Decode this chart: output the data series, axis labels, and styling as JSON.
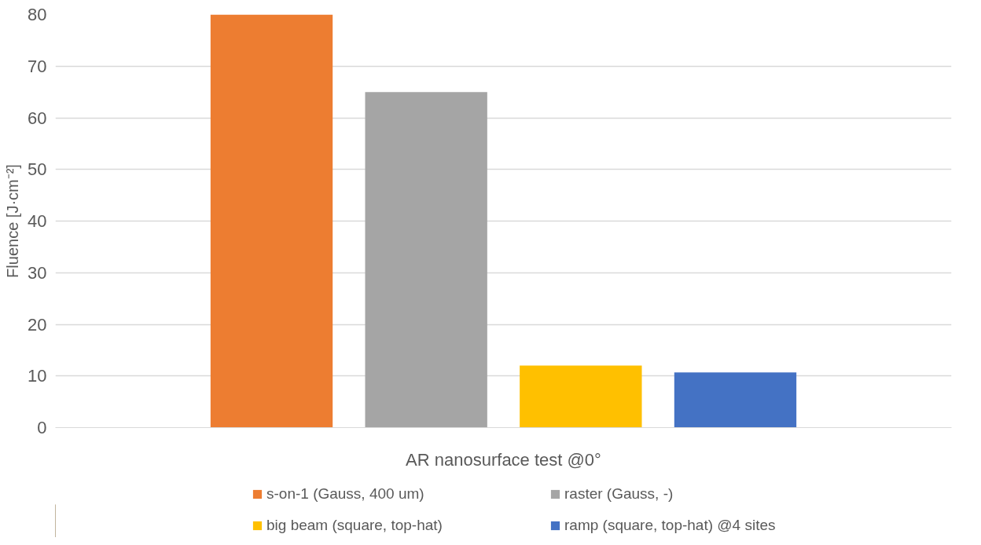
{
  "chart_data": {
    "type": "bar",
    "categories": [
      "AR nanosurface test @0°"
    ],
    "ylabel": "Fluence [J·cm⁻²]",
    "series": [
      {
        "name": "s-on-1 (Gauss, 400 um)",
        "color": "#ed7d31",
        "values": [
          80
        ]
      },
      {
        "name": "raster (Gauss, -)",
        "color": "#a5a5a5",
        "values": [
          65
        ]
      },
      {
        "name": "big beam (square, top-hat)",
        "color": "#ffc000",
        "values": [
          12
        ]
      },
      {
        "name": "ramp (square, top-hat) @4 sites",
        "color": "#4472c4",
        "values": [
          10.7
        ]
      }
    ],
    "ylim": [
      0,
      80
    ],
    "yticks": [
      0,
      10,
      20,
      30,
      40,
      50,
      60,
      70,
      80
    ],
    "grid": "y",
    "legend": "bottom"
  }
}
